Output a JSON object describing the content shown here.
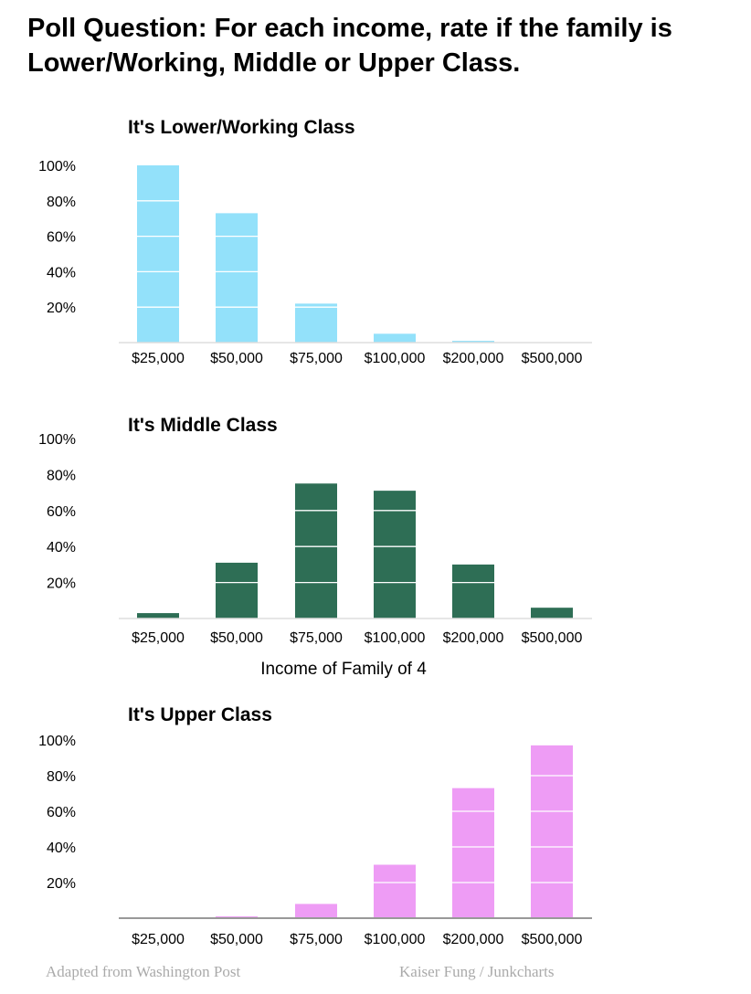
{
  "title": "Poll Question: For each income, rate if the family is Lower/Working, Middle or Upper Class.",
  "footer_left": "Adapted from Washington Post",
  "footer_right": "Kaiser Fung / Junkcharts",
  "chart_data": [
    {
      "type": "bar",
      "title": "It's Lower/Working Class",
      "categories": [
        "$25,000",
        "$50,000",
        "$75,000",
        "$100,000",
        "$200,000",
        "$500,000"
      ],
      "values": [
        100,
        73,
        22,
        5,
        1,
        0
      ],
      "yticks": [
        "20%",
        "40%",
        "60%",
        "80%",
        "100%"
      ],
      "ylim": [
        0,
        100
      ],
      "xlabel": "",
      "color": "#93E1FA"
    },
    {
      "type": "bar",
      "title": "It's Middle Class",
      "categories": [
        "$25,000",
        "$50,000",
        "$75,000",
        "$100,000",
        "$200,000",
        "$500,000"
      ],
      "values": [
        3,
        31,
        75,
        71,
        30,
        6
      ],
      "yticks": [
        "20%",
        "40%",
        "60%",
        "80%",
        "100%"
      ],
      "ylim": [
        0,
        100
      ],
      "xlabel": "Income of Family of 4",
      "color": "#2E6E55"
    },
    {
      "type": "bar",
      "title": "It's Upper Class",
      "categories": [
        "$25,000",
        "$50,000",
        "$75,000",
        "$100,000",
        "$200,000",
        "$500,000"
      ],
      "values": [
        0,
        1,
        8,
        30,
        73,
        97
      ],
      "yticks": [
        "20%",
        "40%",
        "60%",
        "80%",
        "100%"
      ],
      "ylim": [
        0,
        100
      ],
      "xlabel": "",
      "color": "#EE9CF5"
    }
  ]
}
